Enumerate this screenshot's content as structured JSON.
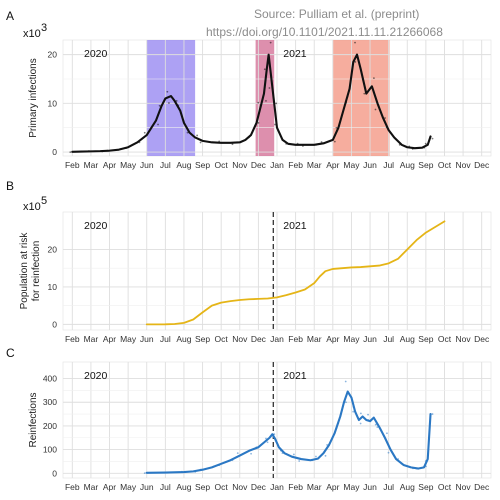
{
  "source_note": {
    "line1": "Source: Pulliam et al. (preprint)",
    "line2": "https://doi.org/10.1101/2021.11.11.21266068"
  },
  "x_axis": {
    "tick_labels": [
      "Feb",
      "Mar",
      "Apr",
      "May",
      "Jun",
      "Jul",
      "Aug",
      "Sep",
      "Oct",
      "Nov",
      "Dec",
      "Jan",
      "Feb",
      "Mar",
      "Apr",
      "May",
      "Jun",
      "Jul",
      "Aug",
      "Sep",
      "Oct",
      "Nov",
      "Dec"
    ],
    "range_months": [
      0,
      23
    ]
  },
  "chart_data": [
    {
      "type": "line",
      "panel_label": "A",
      "scale_label": "x10",
      "scale_exponent": "3",
      "ylabel": "Primary infections",
      "year_labels": [
        "2020",
        "2021"
      ],
      "ylim": [
        -0.8,
        23
      ],
      "yticks": [
        0,
        10,
        20
      ],
      "wave_bands": [
        {
          "start": 4.0,
          "end": 6.6,
          "color": "#7b68ee"
        },
        {
          "start": 9.85,
          "end": 10.85,
          "color": "#c84b7a"
        },
        {
          "start": 14.0,
          "end": 17.05,
          "color": "#f07a62"
        }
      ],
      "series": [
        {
          "color": "#111111",
          "values": [
            [
              0.0,
              0.05
            ],
            [
              0.5,
              0.1
            ],
            [
              1.0,
              0.15
            ],
            [
              1.5,
              0.2
            ],
            [
              2.0,
              0.3
            ],
            [
              2.5,
              0.5
            ],
            [
              3.0,
              1.0
            ],
            [
              3.5,
              2.0
            ],
            [
              4.0,
              3.5
            ],
            [
              4.5,
              6.5
            ],
            [
              4.8,
              9.5
            ],
            [
              5.0,
              11.0
            ],
            [
              5.3,
              11.5
            ],
            [
              5.5,
              10.5
            ],
            [
              5.8,
              8.5
            ],
            [
              6.0,
              6.0
            ],
            [
              6.3,
              4.0
            ],
            [
              6.6,
              3.0
            ],
            [
              7.0,
              2.3
            ],
            [
              7.5,
              2.0
            ],
            [
              8.0,
              1.9
            ],
            [
              8.5,
              1.9
            ],
            [
              9.0,
              2.0
            ],
            [
              9.3,
              2.5
            ],
            [
              9.6,
              3.5
            ],
            [
              9.9,
              6.0
            ],
            [
              10.1,
              9.0
            ],
            [
              10.3,
              12.0
            ],
            [
              10.45,
              17.0
            ],
            [
              10.55,
              20.0
            ],
            [
              10.7,
              15.0
            ],
            [
              10.85,
              10.0
            ],
            [
              11.0,
              5.0
            ],
            [
              11.3,
              2.5
            ],
            [
              11.6,
              1.7
            ],
            [
              12.0,
              1.5
            ],
            [
              12.5,
              1.5
            ],
            [
              13.0,
              1.5
            ],
            [
              13.5,
              1.8
            ],
            [
              14.0,
              2.5
            ],
            [
              14.3,
              5.0
            ],
            [
              14.6,
              9.0
            ],
            [
              14.9,
              13.0
            ],
            [
              15.1,
              18.5
            ],
            [
              15.3,
              20.0
            ],
            [
              15.5,
              17.0
            ],
            [
              15.8,
              12.0
            ],
            [
              16.1,
              13.5
            ],
            [
              16.4,
              10.0
            ],
            [
              16.7,
              7.0
            ],
            [
              17.0,
              4.5
            ],
            [
              17.3,
              3.0
            ],
            [
              17.7,
              1.5
            ],
            [
              18.0,
              1.0
            ],
            [
              18.4,
              0.8
            ],
            [
              18.8,
              0.9
            ],
            [
              19.1,
              1.5
            ],
            [
              19.25,
              3.2
            ]
          ]
        }
      ]
    },
    {
      "type": "line",
      "panel_label": "B",
      "scale_label": "x10",
      "scale_exponent": "5",
      "ylabel": "Population at risk\nfor reinfection",
      "year_labels": [
        "2020",
        "2021"
      ],
      "ylim": [
        -1.5,
        30
      ],
      "yticks": [
        0,
        10,
        20
      ],
      "vline_month": 10.8,
      "series": [
        {
          "color": "#e5b517",
          "values": [
            [
              4.0,
              0.0
            ],
            [
              4.5,
              0.0
            ],
            [
              5.0,
              0.02
            ],
            [
              5.5,
              0.1
            ],
            [
              6.0,
              0.4
            ],
            [
              6.5,
              1.3
            ],
            [
              7.0,
              3.2
            ],
            [
              7.5,
              5.0
            ],
            [
              8.0,
              5.8
            ],
            [
              8.5,
              6.2
            ],
            [
              9.0,
              6.5
            ],
            [
              9.5,
              6.7
            ],
            [
              10.0,
              6.8
            ],
            [
              10.5,
              6.9
            ],
            [
              11.0,
              7.2
            ],
            [
              11.5,
              7.8
            ],
            [
              12.0,
              8.5
            ],
            [
              12.5,
              9.3
            ],
            [
              13.0,
              11.0
            ],
            [
              13.3,
              12.8
            ],
            [
              13.6,
              14.2
            ],
            [
              14.0,
              14.8
            ],
            [
              14.5,
              15.0
            ],
            [
              15.0,
              15.2
            ],
            [
              15.5,
              15.3
            ],
            [
              16.0,
              15.5
            ],
            [
              16.5,
              15.7
            ],
            [
              17.0,
              16.3
            ],
            [
              17.5,
              17.5
            ],
            [
              18.0,
              20.0
            ],
            [
              18.5,
              22.5
            ],
            [
              19.0,
              24.5
            ],
            [
              19.5,
              26.0
            ],
            [
              20.0,
              27.5
            ]
          ]
        }
      ]
    },
    {
      "type": "line",
      "panel_label": "C",
      "ylabel": "Reinfections",
      "year_labels": [
        "2020",
        "2021"
      ],
      "ylim": [
        -20,
        470
      ],
      "yticks": [
        0,
        100,
        200,
        300,
        400
      ],
      "vline_month": 10.8,
      "series": [
        {
          "color": "#2b78c4",
          "values": [
            [
              4.0,
              2
            ],
            [
              5.0,
              3
            ],
            [
              6.0,
              5
            ],
            [
              6.5,
              8
            ],
            [
              7.0,
              15
            ],
            [
              7.5,
              25
            ],
            [
              8.0,
              40
            ],
            [
              8.5,
              55
            ],
            [
              9.0,
              75
            ],
            [
              9.5,
              95
            ],
            [
              10.0,
              110
            ],
            [
              10.3,
              130
            ],
            [
              10.6,
              150
            ],
            [
              10.75,
              165
            ],
            [
              10.9,
              145
            ],
            [
              11.1,
              110
            ],
            [
              11.4,
              85
            ],
            [
              11.8,
              70
            ],
            [
              12.3,
              60
            ],
            [
              12.8,
              55
            ],
            [
              13.2,
              62
            ],
            [
              13.5,
              85
            ],
            [
              13.8,
              120
            ],
            [
              14.1,
              170
            ],
            [
              14.4,
              240
            ],
            [
              14.6,
              300
            ],
            [
              14.8,
              345
            ],
            [
              15.0,
              320
            ],
            [
              15.2,
              260
            ],
            [
              15.4,
              225
            ],
            [
              15.6,
              240
            ],
            [
              15.8,
              225
            ],
            [
              16.0,
              220
            ],
            [
              16.2,
              235
            ],
            [
              16.5,
              195
            ],
            [
              16.8,
              150
            ],
            [
              17.1,
              100
            ],
            [
              17.4,
              60
            ],
            [
              17.8,
              35
            ],
            [
              18.2,
              25
            ],
            [
              18.6,
              20
            ],
            [
              18.9,
              25
            ],
            [
              19.1,
              60
            ],
            [
              19.25,
              250
            ]
          ]
        }
      ]
    }
  ]
}
